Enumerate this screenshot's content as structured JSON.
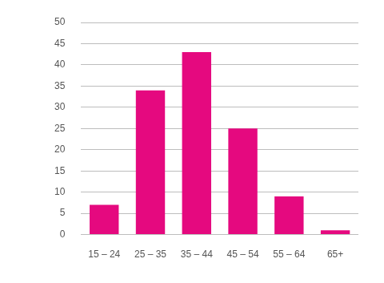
{
  "chart_data": {
    "type": "bar",
    "categories": [
      "15 – 24",
      "25 – 35",
      "35 – 44",
      "45 – 54",
      "55 – 64",
      "65+"
    ],
    "values": [
      7,
      34,
      43,
      25,
      9,
      1
    ],
    "color": "#e5097f",
    "ylim": [
      0,
      50
    ],
    "yticks": [
      0,
      5,
      10,
      15,
      20,
      25,
      30,
      35,
      40,
      45,
      50
    ],
    "grid": true
  }
}
